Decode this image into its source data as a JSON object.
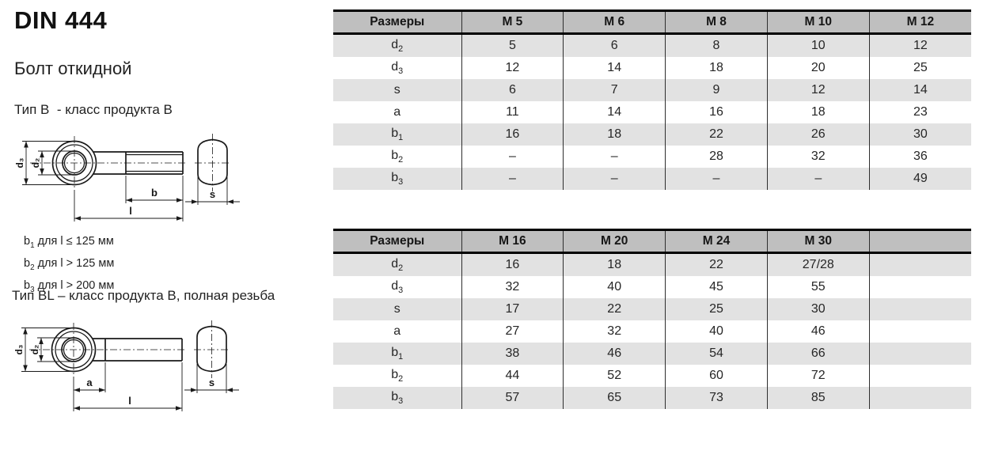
{
  "header": {
    "title": "DIN 444",
    "subtitle": "Болт откидной"
  },
  "sections": {
    "type_b_label": "Тип B  - класс продукта B",
    "type_bl_label": "Тип BL – класс продукта B, полная резьба"
  },
  "notes": [
    {
      "base": "b",
      "sub": "1",
      "rest": " для l ≤ 125 мм"
    },
    {
      "base": "b",
      "sub": "2",
      "rest": " для l > 125 мм"
    },
    {
      "base": "b",
      "sub": "3",
      "rest": " для l > 200 мм"
    }
  ],
  "drawings": {
    "type_b": {
      "d3": "d₃",
      "d2": "d₂",
      "b": "b",
      "l": "l",
      "s": "s"
    },
    "type_bl": {
      "d3": "d₃",
      "d2": "d₂",
      "a": "a",
      "l": "l",
      "s": "s"
    }
  },
  "tables": [
    {
      "header": [
        "Размеры",
        "M 5",
        "M 6",
        "M 8",
        "M 10",
        "M 12"
      ],
      "rows": [
        {
          "label": {
            "base": "d",
            "sub": "2"
          },
          "values": [
            "5",
            "6",
            "8",
            "10",
            "12"
          ]
        },
        {
          "label": {
            "base": "d",
            "sub": "3"
          },
          "values": [
            "12",
            "14",
            "18",
            "20",
            "25"
          ]
        },
        {
          "label": {
            "base": "s",
            "sub": ""
          },
          "values": [
            "6",
            "7",
            "9",
            "12",
            "14"
          ]
        },
        {
          "label": {
            "base": "a",
            "sub": ""
          },
          "values": [
            "11",
            "14",
            "16",
            "18",
            "23"
          ]
        },
        {
          "label": {
            "base": "b",
            "sub": "1"
          },
          "values": [
            "16",
            "18",
            "22",
            "26",
            "30"
          ]
        },
        {
          "label": {
            "base": "b",
            "sub": "2"
          },
          "values": [
            "–",
            "–",
            "28",
            "32",
            "36"
          ]
        },
        {
          "label": {
            "base": "b",
            "sub": "3"
          },
          "values": [
            "–",
            "–",
            "–",
            "–",
            "49"
          ]
        }
      ]
    },
    {
      "header": [
        "Размеры",
        "M 16",
        "M 20",
        "M 24",
        "M 30",
        ""
      ],
      "rows": [
        {
          "label": {
            "base": "d",
            "sub": "2"
          },
          "values": [
            "16",
            "18",
            "22",
            "27/28",
            ""
          ]
        },
        {
          "label": {
            "base": "d",
            "sub": "3"
          },
          "values": [
            "32",
            "40",
            "45",
            "55",
            ""
          ]
        },
        {
          "label": {
            "base": "s",
            "sub": ""
          },
          "values": [
            "17",
            "22",
            "25",
            "30",
            ""
          ]
        },
        {
          "label": {
            "base": "a",
            "sub": ""
          },
          "values": [
            "27",
            "32",
            "40",
            "46",
            ""
          ]
        },
        {
          "label": {
            "base": "b",
            "sub": "1"
          },
          "values": [
            "38",
            "46",
            "54",
            "66",
            ""
          ]
        },
        {
          "label": {
            "base": "b",
            "sub": "2"
          },
          "values": [
            "44",
            "52",
            "60",
            "72",
            ""
          ]
        },
        {
          "label": {
            "base": "b",
            "sub": "3"
          },
          "values": [
            "57",
            "65",
            "73",
            "85",
            ""
          ]
        }
      ]
    }
  ],
  "colors": {
    "table_header_bg": "#bfbfbf",
    "table_row_alt_bg": "#e2e2e2",
    "table_row_bg": "#ffffff",
    "border": "#000000",
    "drawing_line": "#1a1a1a",
    "text": "#1f1f1f"
  }
}
